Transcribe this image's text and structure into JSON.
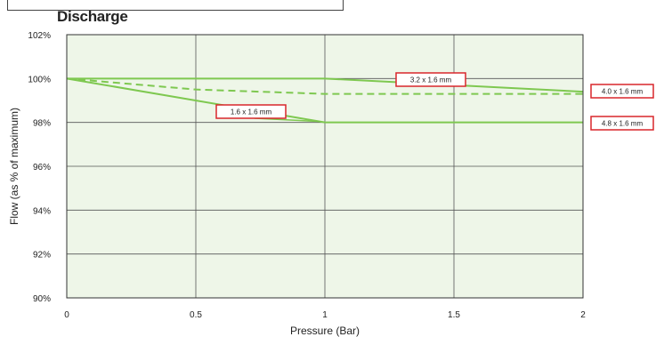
{
  "chart_data": {
    "type": "line",
    "title": "Discharge",
    "xlabel": "Pressure (Bar)",
    "ylabel": "Flow (as % of maximum)",
    "xlim": [
      0,
      2
    ],
    "ylim": [
      90,
      102
    ],
    "x_ticks": [
      {
        "value": 0,
        "label": "0"
      },
      {
        "value": 0.5,
        "label": "0.5"
      },
      {
        "value": 1,
        "label": "1"
      },
      {
        "value": 1.5,
        "label": "1.5"
      },
      {
        "value": 2,
        "label": "2"
      }
    ],
    "y_ticks": [
      {
        "value": 90,
        "label": "90%"
      },
      {
        "value": 92,
        "label": "92%"
      },
      {
        "value": 94,
        "label": "94%"
      },
      {
        "value": 96,
        "label": "96%"
      },
      {
        "value": 98,
        "label": "98%"
      },
      {
        "value": 100,
        "label": "100%"
      },
      {
        "value": 102,
        "label": "102%"
      }
    ],
    "grid": true,
    "plot_background": "#eef6e8",
    "line_color": "#7ec850",
    "callout_border_color": "#d9262b",
    "series": [
      {
        "name": "3.2 x 1.6 mm",
        "x": [
          0,
          1,
          2
        ],
        "y": [
          100,
          100,
          99.4
        ],
        "dashed": false
      },
      {
        "name": "4.0 x 1.6 mm",
        "x": [
          0,
          0.5,
          1,
          2
        ],
        "y": [
          100,
          99.5,
          99.3,
          99.3
        ],
        "dashed": true
      },
      {
        "name": "1.6 x 1.6 mm",
        "x": [
          0,
          1
        ],
        "y": [
          100,
          98
        ],
        "dashed": false
      },
      {
        "name": "4.8 x 1.6 mm",
        "x": [
          1,
          2
        ],
        "y": [
          98,
          98
        ],
        "dashed": false
      }
    ],
    "callouts": [
      {
        "series": "3.2 x 1.6 mm",
        "label": "3.2 x 1.6 mm",
        "placement": "inside-upper-right",
        "leader": false
      },
      {
        "series": "1.6 x 1.6 mm",
        "label": "1.6 x 1.6 mm",
        "placement": "inside-middle",
        "leader": true
      },
      {
        "series": "4.0 x 1.6 mm",
        "label": "4.0 x 1.6 mm",
        "placement": "right-margin",
        "leader": false
      },
      {
        "series": "4.8 x 1.6 mm",
        "label": "4.8 x 1.6 mm",
        "placement": "right-margin",
        "leader": false
      }
    ]
  }
}
